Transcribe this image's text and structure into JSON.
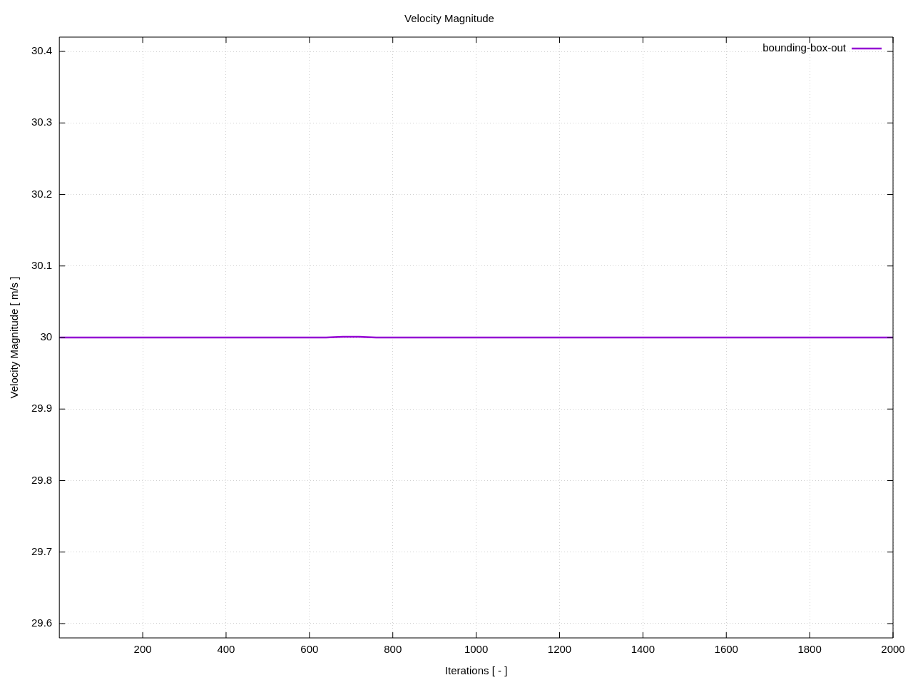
{
  "chart_data": {
    "type": "line",
    "title": "Velocity Magnitude",
    "xlabel": "Iterations [ - ]",
    "ylabel": "Velocity Magnitude [ m/s ]",
    "xlim": [
      0,
      2000
    ],
    "xticks": [
      200,
      400,
      600,
      800,
      1000,
      1200,
      1400,
      1600,
      1800,
      2000
    ],
    "ylim": [
      29.58,
      30.42
    ],
    "yticks": [
      29.6,
      29.7,
      29.8,
      29.9,
      30,
      30.1,
      30.2,
      30.3,
      30.4
    ],
    "grid": true,
    "legend": "top right",
    "marker": "none",
    "line_style": "solid",
    "series": [
      {
        "name": "bounding-box-out",
        "color": "#9400d3",
        "x": [
          0,
          300,
          600,
          640,
          680,
          720,
          760,
          900,
          920,
          1000,
          1200,
          1600,
          2000
        ],
        "values": [
          30,
          30,
          30,
          30,
          30.001,
          30.001,
          30,
          30,
          30,
          30,
          30,
          30,
          30
        ]
      }
    ]
  }
}
